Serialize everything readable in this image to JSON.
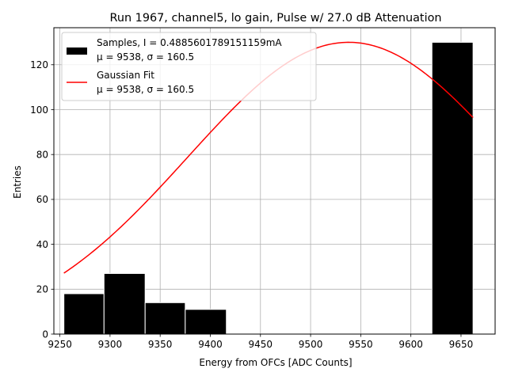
{
  "chart_data": {
    "type": "bar",
    "title": "Run 1967, channel5, lo gain, Pulse w/ 27.0 dB Attenuation",
    "xlabel": "Energy from OFCs [ADC Counts]",
    "ylabel": "Entries",
    "xlim": [
      9244,
      9684
    ],
    "ylim": [
      0,
      136.5
    ],
    "xticks": [
      "9250",
      "9300",
      "9350",
      "9400",
      "9450",
      "9500",
      "9550",
      "9600",
      "9650"
    ],
    "yticks": [
      "0",
      "20",
      "40",
      "60",
      "80",
      "100",
      "120"
    ],
    "grid": true,
    "legend_position": "top-left",
    "histogram": {
      "name": "Samples, I = 0.4885601789151159mA",
      "stats": "μ = 9538, σ = 160.5",
      "color": "#000000",
      "edge_color": "#ffffff",
      "bins": [
        {
          "x0": 9254,
          "x1": 9294,
          "count": 18
        },
        {
          "x0": 9294,
          "x1": 9335,
          "count": 27
        },
        {
          "x0": 9335,
          "x1": 9375,
          "count": 14
        },
        {
          "x0": 9375,
          "x1": 9416,
          "count": 11
        },
        {
          "x0": 9416,
          "x1": 9456,
          "count": 0
        },
        {
          "x0": 9456,
          "x1": 9497,
          "count": 0
        },
        {
          "x0": 9497,
          "x1": 9538,
          "count": 0
        },
        {
          "x0": 9538,
          "x1": 9578,
          "count": 0
        },
        {
          "x0": 9578,
          "x1": 9621,
          "count": 0
        },
        {
          "x0": 9621,
          "x1": 9662,
          "count": 130
        }
      ]
    },
    "fit": {
      "name": "Gaussian Fit",
      "stats": "μ = 9538, σ = 160.5",
      "color": "#ff0000",
      "mu": 9538,
      "sigma": 160.5,
      "amplitude": 130,
      "x_range": [
        9254,
        9662
      ]
    }
  }
}
